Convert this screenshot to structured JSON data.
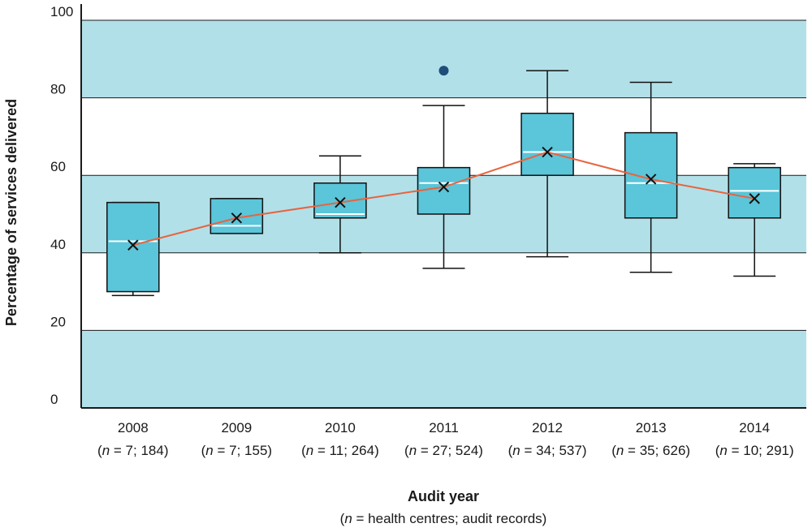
{
  "chart_data": {
    "type": "boxplot",
    "ylabel": "Percentage of services delivered",
    "xlabel": "Audit year",
    "xlabel_sub": "(n = health centres; audit records)",
    "ylim": [
      0,
      100
    ],
    "yticks": [
      0,
      20,
      40,
      60,
      80,
      100
    ],
    "bands": [
      [
        0,
        20
      ],
      [
        40,
        60
      ],
      [
        80,
        100
      ]
    ],
    "colors": {
      "band": "#b2e0e9",
      "box": "#5bc5d9",
      "median": "#ffffff",
      "mean_line": "#e8643f",
      "outlier": "#1f4e79",
      "axis": "#1a1a1a"
    },
    "categories": [
      {
        "year": "2008",
        "n_label": "(n = 7; 184)",
        "min": 29,
        "q1": 30,
        "median": 43,
        "q3": 53,
        "max": 53,
        "mean": 42,
        "outliers": []
      },
      {
        "year": "2009",
        "n_label": "(n = 7; 155)",
        "min": 45,
        "q1": 45,
        "median": 47,
        "q3": 54,
        "max": 54,
        "mean": 49,
        "outliers": []
      },
      {
        "year": "2010",
        "n_label": "(n = 11; 264)",
        "min": 40,
        "q1": 49,
        "median": 50,
        "q3": 58,
        "max": 65,
        "mean": 53,
        "outliers": []
      },
      {
        "year": "2011",
        "n_label": "(n = 27; 524)",
        "min": 36,
        "q1": 50,
        "median": 58,
        "q3": 62,
        "max": 78,
        "mean": 57,
        "outliers": [
          87
        ]
      },
      {
        "year": "2012",
        "n_label": "(n = 34; 537)",
        "min": 39,
        "q1": 60,
        "median": 66,
        "q3": 76,
        "max": 87,
        "mean": 66,
        "outliers": []
      },
      {
        "year": "2013",
        "n_label": "(n = 35; 626)",
        "min": 35,
        "q1": 49,
        "median": 58,
        "q3": 71,
        "max": 84,
        "mean": 59,
        "outliers": []
      },
      {
        "year": "2014",
        "n_label": "(n = 10; 291)",
        "min": 34,
        "q1": 49,
        "median": 56,
        "q3": 62,
        "max": 63,
        "mean": 54,
        "outliers": []
      }
    ]
  }
}
